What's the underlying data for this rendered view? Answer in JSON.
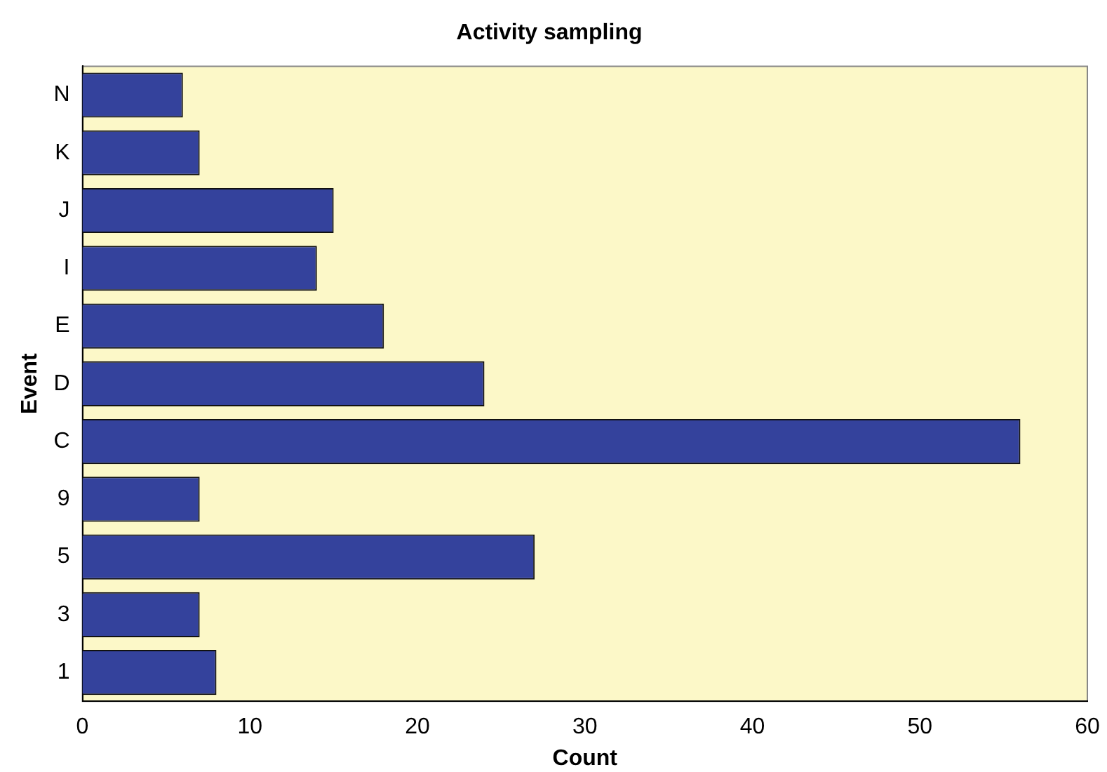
{
  "chart_data": {
    "type": "bar",
    "orientation": "horizontal",
    "title": "Activity sampling",
    "xlabel": "Count",
    "ylabel": "Event",
    "categories": [
      "N",
      "K",
      "J",
      "I",
      "E",
      "D",
      "C",
      "9",
      "5",
      "3",
      "1"
    ],
    "values": [
      6,
      7,
      15,
      14,
      18,
      24,
      56,
      7,
      27,
      7,
      8
    ],
    "color": "#34429c",
    "xlim": [
      0,
      60
    ],
    "xticks": [
      0,
      10,
      20,
      30,
      40,
      50,
      60
    ],
    "grid": false,
    "legend": false
  }
}
